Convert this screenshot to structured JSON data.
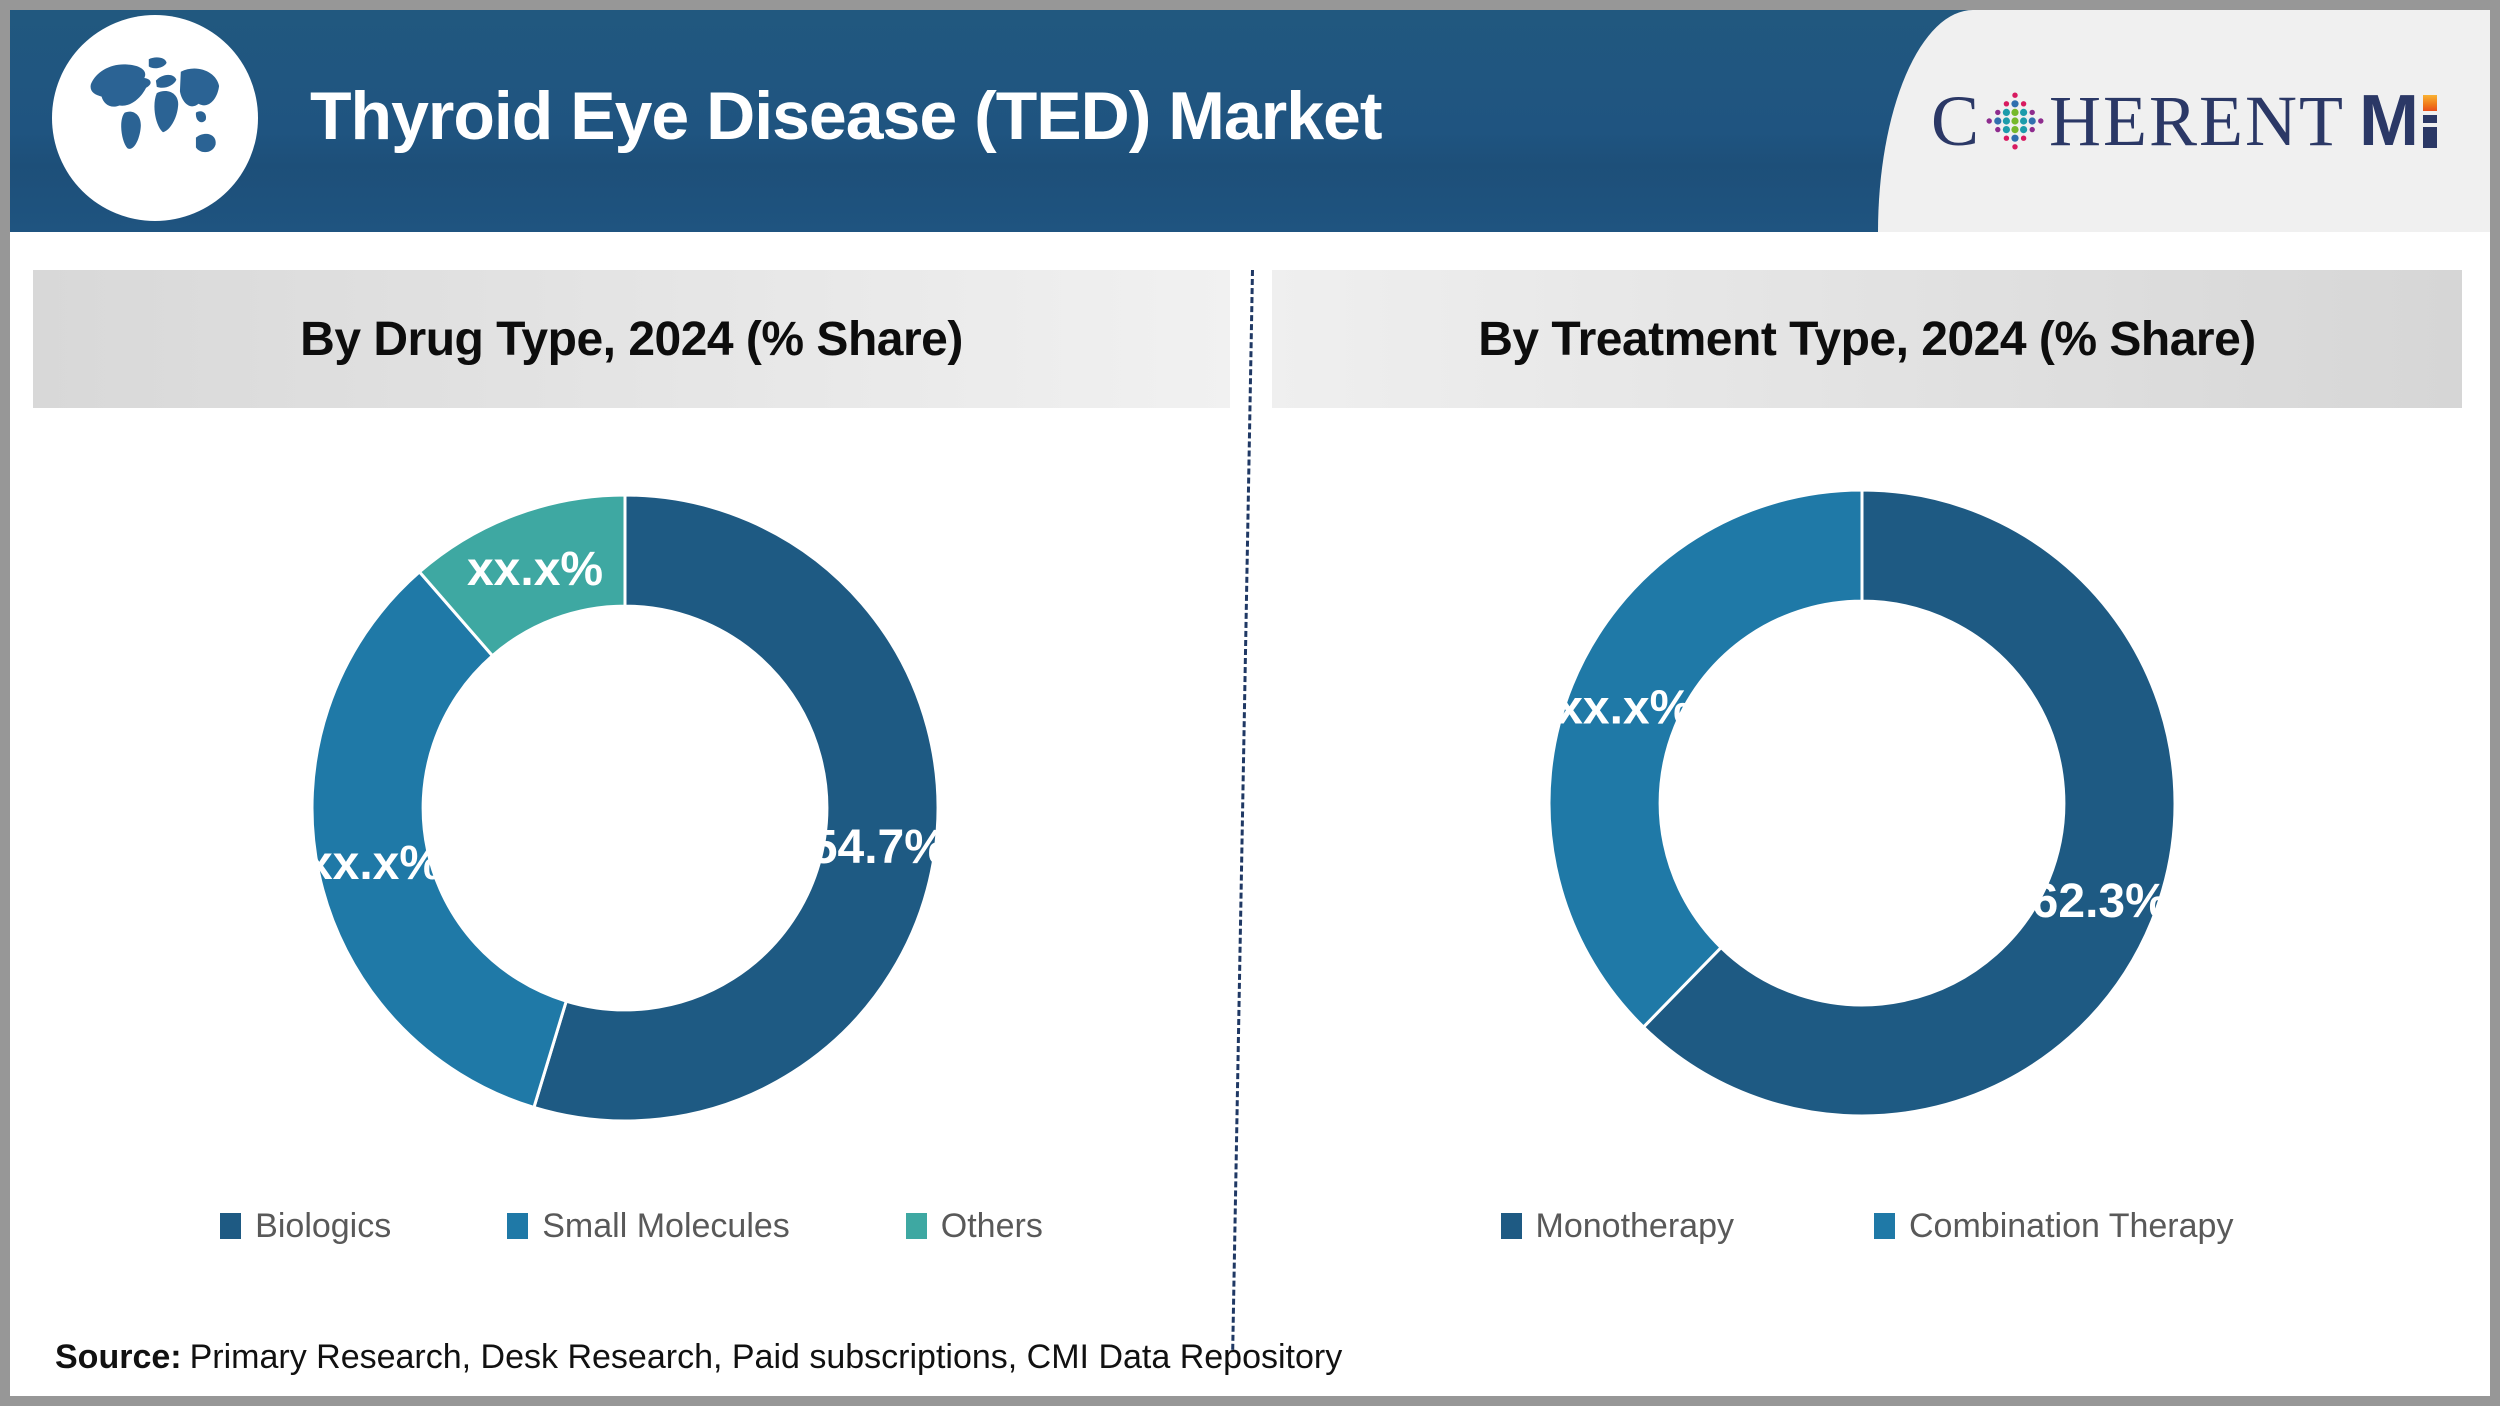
{
  "header": {
    "title": "Thyroid Eye Disease (TED) Market",
    "bg_color": "#1f5480",
    "globe_icon": "world-map-globe",
    "logo": {
      "c": "C",
      "herent": "HERENT",
      "m": "M",
      "navy": "#2b3866",
      "dot_green": "#76b82a",
      "dot_teal": "#1c9cab",
      "dot_blue": "#2f6fae",
      "dot_pink": "#d81b60",
      "dot_purple": "#8e2c8e"
    }
  },
  "panels": [
    {
      "title": "By Drug Type, 2024 (% Share)"
    },
    {
      "title": "By Treatment Type, 2024 (% Share)"
    }
  ],
  "chart_data": [
    {
      "type": "donut",
      "title": "By Drug Type, 2024 (% Share)",
      "start_angle_deg": 0,
      "direction": "clockwise",
      "inner_radius_ratio": 0.645,
      "legend_position": "bottom",
      "segments": [
        {
          "label": "Biologics",
          "value": 54.7,
          "display": "54.7%",
          "color": "#1e5a83"
        },
        {
          "label": "Small Molecules",
          "value": 33.9,
          "display": "xx.x%",
          "color": "#1f79a7"
        },
        {
          "label": "Others",
          "value": 11.4,
          "display": "xx.x%",
          "color": "#3ea8a2"
        }
      ]
    },
    {
      "type": "donut",
      "title": "By Treatment Type, 2024 (% Share)",
      "start_angle_deg": 0,
      "direction": "clockwise",
      "inner_radius_ratio": 0.645,
      "legend_position": "bottom",
      "segments": [
        {
          "label": "Monotherapy",
          "value": 62.3,
          "display": "62.3%",
          "color": "#1e5a83"
        },
        {
          "label": "Combination Therapy",
          "value": 37.7,
          "display": "xx.x%",
          "color": "#1f79a7"
        }
      ]
    }
  ],
  "source": {
    "prefix": "Source:",
    "text": "Primary Research, Desk Research, Paid subscriptions, CMI Data Repository"
  }
}
